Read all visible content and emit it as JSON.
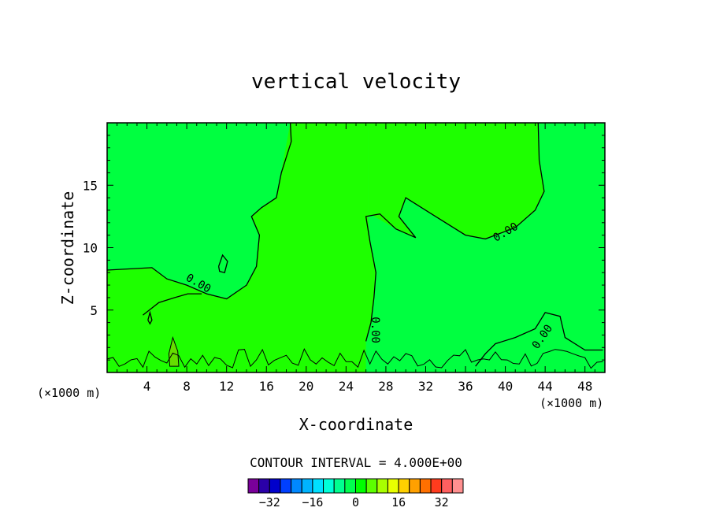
{
  "chart_data": {
    "type": "contour",
    "title": "vertical velocity",
    "xlabel": "X-coordinate",
    "ylabel": "Z-coordinate",
    "x_unit_left": "(×1000 m)",
    "x_unit_right": "(×1000 m)",
    "xlim": [
      0,
      50
    ],
    "ylim": [
      0,
      20
    ],
    "x_ticks": [
      4,
      8,
      12,
      16,
      20,
      24,
      28,
      32,
      36,
      40,
      44,
      48
    ],
    "y_ticks": [
      5,
      10,
      15
    ],
    "contour_labels": [
      "0.00",
      "0.00",
      "0.00",
      "0.00",
      "0.00"
    ],
    "contour_interval_text": "CONTOUR INTERVAL = 4.000E+00",
    "colorbar": {
      "colors": [
        "#7a009a",
        "#2a00a8",
        "#0000cc",
        "#0040ff",
        "#0088ff",
        "#00b4ff",
        "#00e0ff",
        "#00ffd8",
        "#00ff90",
        "#00ff50",
        "#00ff00",
        "#5cff00",
        "#a8ff00",
        "#e8ff00",
        "#ffd000",
        "#ffa000",
        "#ff7000",
        "#ff3c1e",
        "#ff6060",
        "#ff9090"
      ],
      "tick_labels": [
        "-32",
        "-16",
        "0",
        "16",
        "32"
      ],
      "tick_values": [
        -32,
        -16,
        0,
        16,
        32
      ],
      "range": [
        -40,
        40
      ]
    },
    "fill_colors": {
      "positive": "#1eff00",
      "near_zero": "#00ff40",
      "strong_positive": "#66dd00"
    },
    "contours": [
      {
        "level": 0,
        "points": [
          [
            0,
            8.2
          ],
          [
            4.5,
            8.4
          ],
          [
            6,
            7.5
          ],
          [
            8,
            7
          ],
          [
            10,
            6.3
          ],
          [
            12,
            5.9
          ],
          [
            14,
            7
          ],
          [
            15,
            8.5
          ],
          [
            15.3,
            11
          ],
          [
            14.5,
            12.5
          ],
          [
            15.5,
            13.2
          ],
          [
            17,
            14
          ],
          [
            17.5,
            16
          ],
          [
            18.5,
            18.5
          ],
          [
            18.4,
            20
          ]
        ]
      },
      {
        "level": 0,
        "points": [
          [
            26,
            2.5
          ],
          [
            26.5,
            4
          ],
          [
            26.8,
            6
          ],
          [
            27,
            8
          ],
          [
            26.4,
            10.5
          ],
          [
            26,
            12.5
          ],
          [
            27.4,
            12.7
          ],
          [
            29,
            11.5
          ],
          [
            31,
            10.8
          ],
          [
            29.3,
            12.5
          ],
          [
            30,
            14
          ],
          [
            33,
            12.5
          ],
          [
            36,
            11
          ],
          [
            38,
            10.7
          ],
          [
            41,
            11.6
          ],
          [
            43,
            13
          ],
          [
            43.9,
            14.5
          ],
          [
            43.4,
            17
          ],
          [
            43.3,
            20
          ]
        ]
      },
      {
        "level": 0,
        "points": [
          [
            49.8,
            1.8
          ],
          [
            48,
            1.8
          ],
          [
            46,
            2.8
          ],
          [
            45.5,
            4.5
          ],
          [
            44,
            4.8
          ],
          [
            43,
            3.5
          ],
          [
            41,
            2.8
          ],
          [
            39,
            2.3
          ],
          [
            38,
            1.5
          ],
          [
            37,
            0.5
          ]
        ]
      },
      {
        "level": 0,
        "points": [
          [
            11.2,
            8.5
          ],
          [
            11.6,
            9.4
          ],
          [
            12.1,
            8.9
          ],
          [
            11.8,
            8
          ],
          [
            11.3,
            8.1
          ],
          [
            11.2,
            8.5
          ]
        ]
      },
      {
        "level": 0,
        "points": [
          [
            3.6,
            4.6
          ],
          [
            5.2,
            5.6
          ],
          [
            6.8,
            6
          ],
          [
            8.1,
            6.3
          ],
          [
            9.5,
            6.3
          ]
        ]
      },
      {
        "level": 0,
        "points": [
          [
            4.1,
            4.2
          ],
          [
            4.3,
            4.8
          ],
          [
            4.5,
            4.2
          ],
          [
            4.3,
            3.9
          ],
          [
            4.1,
            4.2
          ]
        ]
      }
    ],
    "contour_label_positions": [
      {
        "label_index": 0,
        "x": 9.0,
        "y": 6.9,
        "angle": 30
      },
      {
        "label_index": 1,
        "x": 26.6,
        "y": 3.4,
        "angle": 90
      },
      {
        "label_index": 2,
        "x": 40.2,
        "y": 11.0,
        "angle": -30
      },
      {
        "label_index": 3,
        "x": 44.0,
        "y": 2.7,
        "angle": -55
      }
    ]
  }
}
